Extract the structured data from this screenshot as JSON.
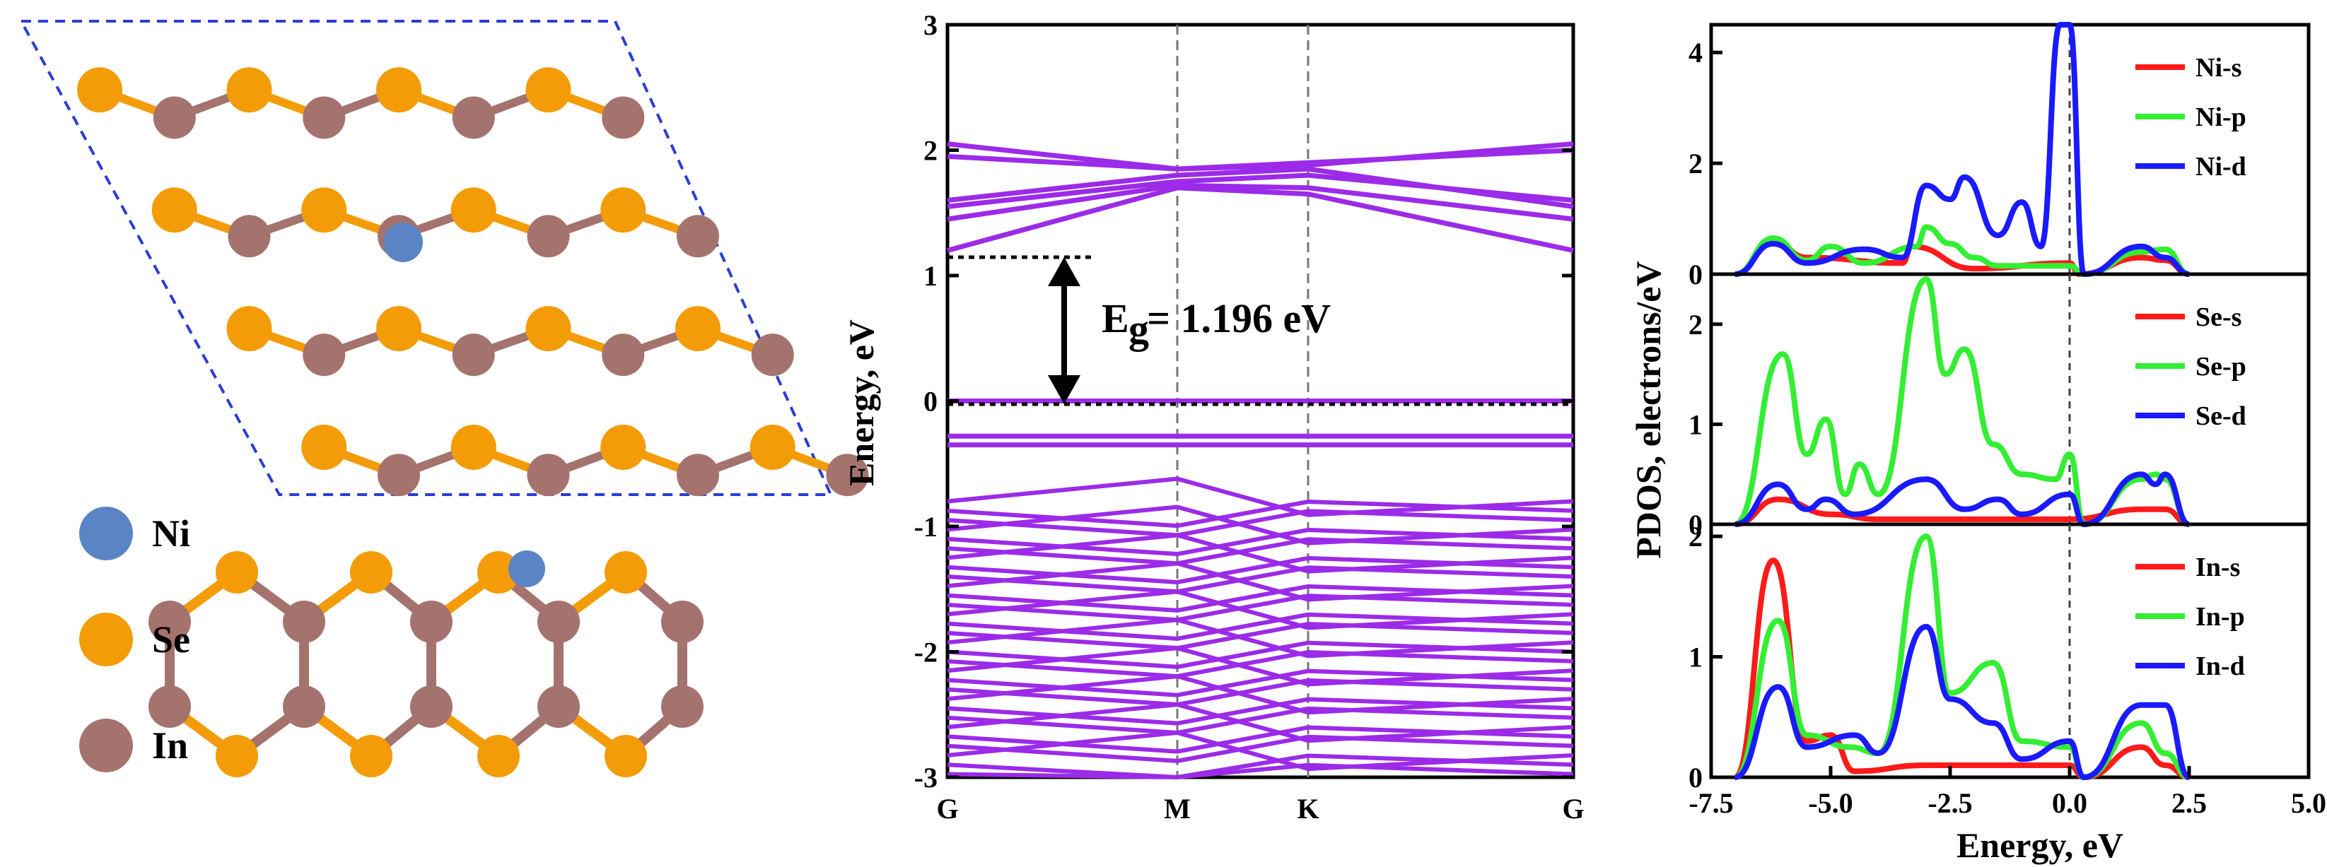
{
  "structure": {
    "legend": [
      {
        "label": "Ni",
        "color": "#5b84c4"
      },
      {
        "label": "Se",
        "color": "#f39c07"
      },
      {
        "label": "In",
        "color": "#a5736d"
      }
    ]
  },
  "band": {
    "ylabel": "Energy, eV",
    "kpoints": [
      "G",
      "M",
      "K",
      "G"
    ],
    "gap_label_main": "E",
    "gap_label_sub": "g",
    "gap_label_rest": "= 1.196 eV",
    "color": "#9b2be8"
  },
  "pdos": {
    "ylabel": "PDOS, electrons/eV",
    "xlabel": "Energy, eV",
    "panels": [
      {
        "legend": [
          "Ni-s",
          "Ni-p",
          "Ni-d"
        ],
        "yticks": [
          "0",
          "2",
          "4"
        ]
      },
      {
        "legend": [
          "Se-s",
          "Se-p",
          "Se-d"
        ],
        "yticks": [
          "0",
          "1",
          "2"
        ]
      },
      {
        "legend": [
          "In-s",
          "In-p",
          "In-d"
        ],
        "yticks": [
          "0",
          "1",
          "2"
        ]
      }
    ],
    "xticks": [
      "-7.5",
      "-5.0",
      "-2.5",
      "0.0",
      "2.5",
      "5.0"
    ],
    "colors": {
      "s": "#ff1a1a",
      "p": "#33ee33",
      "d": "#1a1aff"
    }
  },
  "chart_data": [
    {
      "type": "line",
      "title": "",
      "ylabel": "Energy, eV",
      "x": [
        "G",
        "M",
        "K",
        "G"
      ],
      "ylim": [
        -3,
        3
      ],
      "yticks": [
        -3,
        -2,
        -1,
        0,
        1,
        2,
        3
      ],
      "band_gap_eV": 1.196,
      "annotation": "Eg = 1.196 eV",
      "conduction_band_minimum": 1.196,
      "valence_band_maximum": 0.0,
      "series": [
        {
          "values": [
            0.0,
            0.0,
            0.0,
            0.0
          ]
        },
        {
          "values": [
            -0.28,
            -0.28,
            -0.28,
            -0.28
          ]
        },
        {
          "values": [
            -0.35,
            -0.35,
            -0.35,
            -0.35
          ]
        },
        {
          "values": [
            1.2,
            1.7,
            1.65,
            1.2
          ]
        },
        {
          "values": [
            1.45,
            1.72,
            1.7,
            1.45
          ]
        },
        {
          "values": [
            1.55,
            1.75,
            1.8,
            1.6
          ]
        },
        {
          "values": [
            1.6,
            1.8,
            1.85,
            1.55
          ]
        },
        {
          "values": [
            1.95,
            1.85,
            1.9,
            2.0
          ]
        },
        {
          "values": [
            2.05,
            1.85,
            1.88,
            2.05
          ]
        }
      ]
    },
    {
      "type": "line",
      "title": "",
      "xlabel": "Energy, eV",
      "ylabel": "PDOS, electrons/eV",
      "xlim": [
        -7.5,
        5.0
      ],
      "ylim": [
        0,
        4.5
      ],
      "fermi_level": 0.0,
      "series": [
        {
          "name": "Ni-s",
          "x": [
            -7.0,
            -6.2,
            -5.5,
            -3.5,
            -3.3,
            -2.0,
            0.0,
            0.2,
            1.5,
            2.0,
            2.5
          ],
          "values": [
            0,
            0.6,
            0.3,
            0.2,
            0.5,
            0.1,
            0.2,
            0.0,
            0.3,
            0.25,
            0
          ]
        },
        {
          "name": "Ni-p",
          "x": [
            -7.0,
            -6.2,
            -5.5,
            -5.0,
            -4.3,
            -3.2,
            -3.0,
            -2.5,
            -2.0,
            -1.5,
            0.0,
            0.3,
            1.5,
            2.0,
            2.5
          ],
          "values": [
            0,
            0.65,
            0.25,
            0.5,
            0.2,
            0.5,
            0.85,
            0.55,
            0.3,
            0.15,
            0.15,
            0,
            0.4,
            0.45,
            0
          ]
        },
        {
          "name": "Ni-d",
          "x": [
            -7.0,
            -6.2,
            -5.5,
            -4.3,
            -3.5,
            -3.0,
            -2.5,
            -2.2,
            -1.5,
            -1.0,
            -0.6,
            -0.2,
            0.0,
            0.3,
            1.5,
            2.0,
            2.5
          ],
          "values": [
            0,
            0.55,
            0.2,
            0.45,
            0.3,
            1.6,
            1.35,
            1.75,
            0.7,
            1.3,
            0.5,
            4.6,
            4.6,
            0,
            0.5,
            0.3,
            0
          ]
        }
      ]
    },
    {
      "type": "line",
      "title": "",
      "xlabel": "Energy, eV",
      "ylabel": "PDOS, electrons/eV",
      "xlim": [
        -7.5,
        5.0
      ],
      "ylim": [
        0,
        2.5
      ],
      "fermi_level": 0.0,
      "series": [
        {
          "name": "Se-s",
          "x": [
            -7.0,
            -6.1,
            -5.0,
            -4.0,
            0.0,
            1.5,
            2.0,
            2.5
          ],
          "values": [
            0,
            0.25,
            0.1,
            0.05,
            0.05,
            0.15,
            0.15,
            0
          ]
        },
        {
          "name": "Se-p",
          "x": [
            -7.0,
            -6.0,
            -5.5,
            -5.1,
            -4.7,
            -4.4,
            -4.0,
            -3.0,
            -2.6,
            -2.2,
            -1.6,
            -1.0,
            -0.3,
            0.0,
            0.3,
            1.5,
            1.8,
            2.0,
            2.5
          ],
          "values": [
            0,
            1.7,
            0.7,
            1.05,
            0.3,
            0.6,
            0.3,
            2.45,
            1.5,
            1.75,
            0.8,
            0.5,
            0.45,
            0.7,
            0,
            0.45,
            0.5,
            0.45,
            0
          ]
        },
        {
          "name": "Se-d",
          "x": [
            -7.0,
            -6.1,
            -5.5,
            -5.1,
            -4.5,
            -3.0,
            -2.2,
            -1.5,
            -1.0,
            0.0,
            0.3,
            1.5,
            1.8,
            2.0,
            2.5
          ],
          "values": [
            0,
            0.4,
            0.15,
            0.25,
            0.1,
            0.45,
            0.15,
            0.25,
            0.1,
            0.3,
            0,
            0.5,
            0.4,
            0.5,
            0
          ]
        }
      ]
    },
    {
      "type": "line",
      "title": "",
      "xlabel": "Energy, eV",
      "ylabel": "PDOS, electrons/eV",
      "xlim": [
        -7.5,
        5.0
      ],
      "ylim": [
        0,
        2.1
      ],
      "fermi_level": 0.0,
      "series": [
        {
          "name": "In-s",
          "x": [
            -7.0,
            -6.2,
            -5.5,
            -5.0,
            -4.5,
            -3.0,
            -2.0,
            0.0,
            0.3,
            1.5,
            2.0,
            2.5
          ],
          "values": [
            0,
            1.8,
            0.3,
            0.35,
            0.05,
            0.1,
            0.1,
            0.1,
            0,
            0.25,
            0.1,
            0
          ]
        },
        {
          "name": "In-p",
          "x": [
            -7.0,
            -6.1,
            -5.5,
            -4.6,
            -4.0,
            -3.0,
            -2.5,
            -1.6,
            -1.0,
            0.0,
            0.3,
            1.5,
            2.0,
            2.5
          ],
          "values": [
            0,
            1.3,
            0.35,
            0.25,
            0.2,
            2.0,
            0.7,
            0.95,
            0.3,
            0.25,
            0,
            0.45,
            0.2,
            0
          ]
        },
        {
          "name": "In-d",
          "x": [
            -7.0,
            -6.1,
            -5.5,
            -4.5,
            -4.0,
            -3.0,
            -2.5,
            -1.6,
            -1.0,
            0.0,
            0.3,
            1.5,
            2.0,
            2.5
          ],
          "values": [
            0,
            0.75,
            0.25,
            0.35,
            0.2,
            1.25,
            0.65,
            0.45,
            0.15,
            0.3,
            0,
            0.6,
            0.6,
            0
          ]
        }
      ]
    }
  ]
}
